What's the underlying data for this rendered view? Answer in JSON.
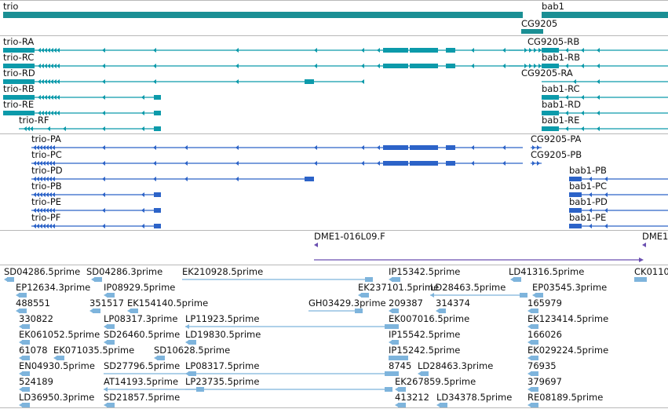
{
  "colors": {
    "gene": "#1a8f94",
    "transcript": "#0c9aaa",
    "protein": "#2c63c8",
    "clone": "#6a4fb0",
    "est": "#7eb4dc",
    "divider": "#b8b8b8"
  },
  "genes": {
    "items": [
      {
        "label": "trio"
      },
      {
        "label": "bab1"
      },
      {
        "label": "CG9205"
      }
    ]
  },
  "transcripts": {
    "items": [
      {
        "label": "trio-RA"
      },
      {
        "label": "trio-RC"
      },
      {
        "label": "trio-RD"
      },
      {
        "label": "trio-RB"
      },
      {
        "label": "trio-RE"
      },
      {
        "label": "trio-RF"
      },
      {
        "label": "CG9205-RB"
      },
      {
        "label": "bab1-RB"
      },
      {
        "label": "CG9205-RA"
      },
      {
        "label": "bab1-RC"
      },
      {
        "label": "bab1-RD"
      },
      {
        "label": "bab1-RE"
      }
    ]
  },
  "proteins": {
    "items": [
      {
        "label": "trio-PA"
      },
      {
        "label": "trio-PC"
      },
      {
        "label": "trio-PD"
      },
      {
        "label": "trio-PB"
      },
      {
        "label": "trio-PE"
      },
      {
        "label": "trio-PF"
      },
      {
        "label": "CG9205-PA"
      },
      {
        "label": "CG9205-PB"
      },
      {
        "label": "bab1-PB"
      },
      {
        "label": "bab1-PC"
      },
      {
        "label": "bab1-PD"
      },
      {
        "label": "bab1-PE"
      }
    ]
  },
  "clones": {
    "items": [
      {
        "label": "DME1-016L09.F"
      },
      {
        "label": "DME1"
      }
    ]
  },
  "ests": {
    "items": [
      {
        "label": "SD04286.5prime"
      },
      {
        "label": "SD04286.3prime"
      },
      {
        "label": "EK210928.5prime"
      },
      {
        "label": "IP15342.5prime"
      },
      {
        "label": "LD41316.5prime"
      },
      {
        "label": "CK0110"
      },
      {
        "label": "EP12634.3prime"
      },
      {
        "label": "IP08929.5prime"
      },
      {
        "label": "EK237101.5prime"
      },
      {
        "label": "LD28463.5prime"
      },
      {
        "label": "EP03545.3prime"
      },
      {
        "label": "488551"
      },
      {
        "label": "351517"
      },
      {
        "label": "EK154140.5prime"
      },
      {
        "label": "GH03429.3prime"
      },
      {
        "label": "209387"
      },
      {
        "label": "314374"
      },
      {
        "label": "165979"
      },
      {
        "label": "330822"
      },
      {
        "label": "LP08317.3prime"
      },
      {
        "label": "LP11923.5prime"
      },
      {
        "label": "EK007016.5prime"
      },
      {
        "label": "EK123414.5prime"
      },
      {
        "label": "EK061052.5prime"
      },
      {
        "label": "SD26460.5prime"
      },
      {
        "label": "LD19830.5prime"
      },
      {
        "label": "IP15542.5prime"
      },
      {
        "label": "166026"
      },
      {
        "label": "61078"
      },
      {
        "label": "EK071035.5prime"
      },
      {
        "label": "SD10628.5prime"
      },
      {
        "label": "IP15242.5prime"
      },
      {
        "label": "EK029224.5prime"
      },
      {
        "label": "EN04930.5prime"
      },
      {
        "label": "SD27796.5prime"
      },
      {
        "label": "LP08317.5prime"
      },
      {
        "label": "8745"
      },
      {
        "label": "LD28463.3prime"
      },
      {
        "label": "76935"
      },
      {
        "label": "524189"
      },
      {
        "label": "AT14193.5prime"
      },
      {
        "label": "LP23735.5prime"
      },
      {
        "label": "EK267859.5prime"
      },
      {
        "label": "379697"
      },
      {
        "label": "LD36950.3prime"
      },
      {
        "label": "SD21857.5prime"
      },
      {
        "label": "413212"
      },
      {
        "label": "LD34378.5prime"
      },
      {
        "label": "RE08189.5prime"
      }
    ]
  }
}
